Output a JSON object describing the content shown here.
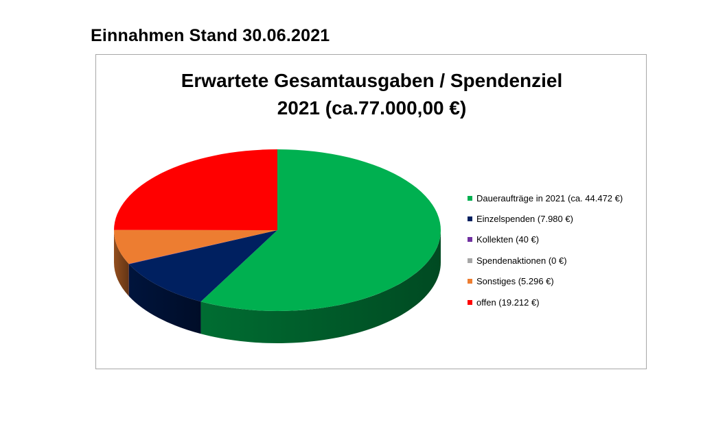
{
  "page": {
    "heading": "Einnahmen Stand 30.06.2021"
  },
  "chart_data": {
    "type": "pie",
    "title_line1": "Erwartete Gesamtausgaben / Spendenziel",
    "title_line2": "2021 (ca.77.000,00 €)",
    "three_d": true,
    "legend_position": "right",
    "slices": [
      {
        "label": "Daueraufträge in 2021 (ca. 44.472 €)",
        "value": 44472,
        "color": "#00b050"
      },
      {
        "label": "Einzelspenden (7.980 €)",
        "value": 7980,
        "color": "#002060"
      },
      {
        "label": "Kollekten (40 €)",
        "value": 40,
        "color": "#7030a0"
      },
      {
        "label": "Spendenaktionen (0 €)",
        "value": 0,
        "color": "#a6a6a6"
      },
      {
        "label": "Sonstiges (5.296 €)",
        "value": 5296,
        "color": "#ed7d31"
      },
      {
        "label": "offen (19.212 €)",
        "value": 19212,
        "color": "#ff0000"
      }
    ]
  }
}
